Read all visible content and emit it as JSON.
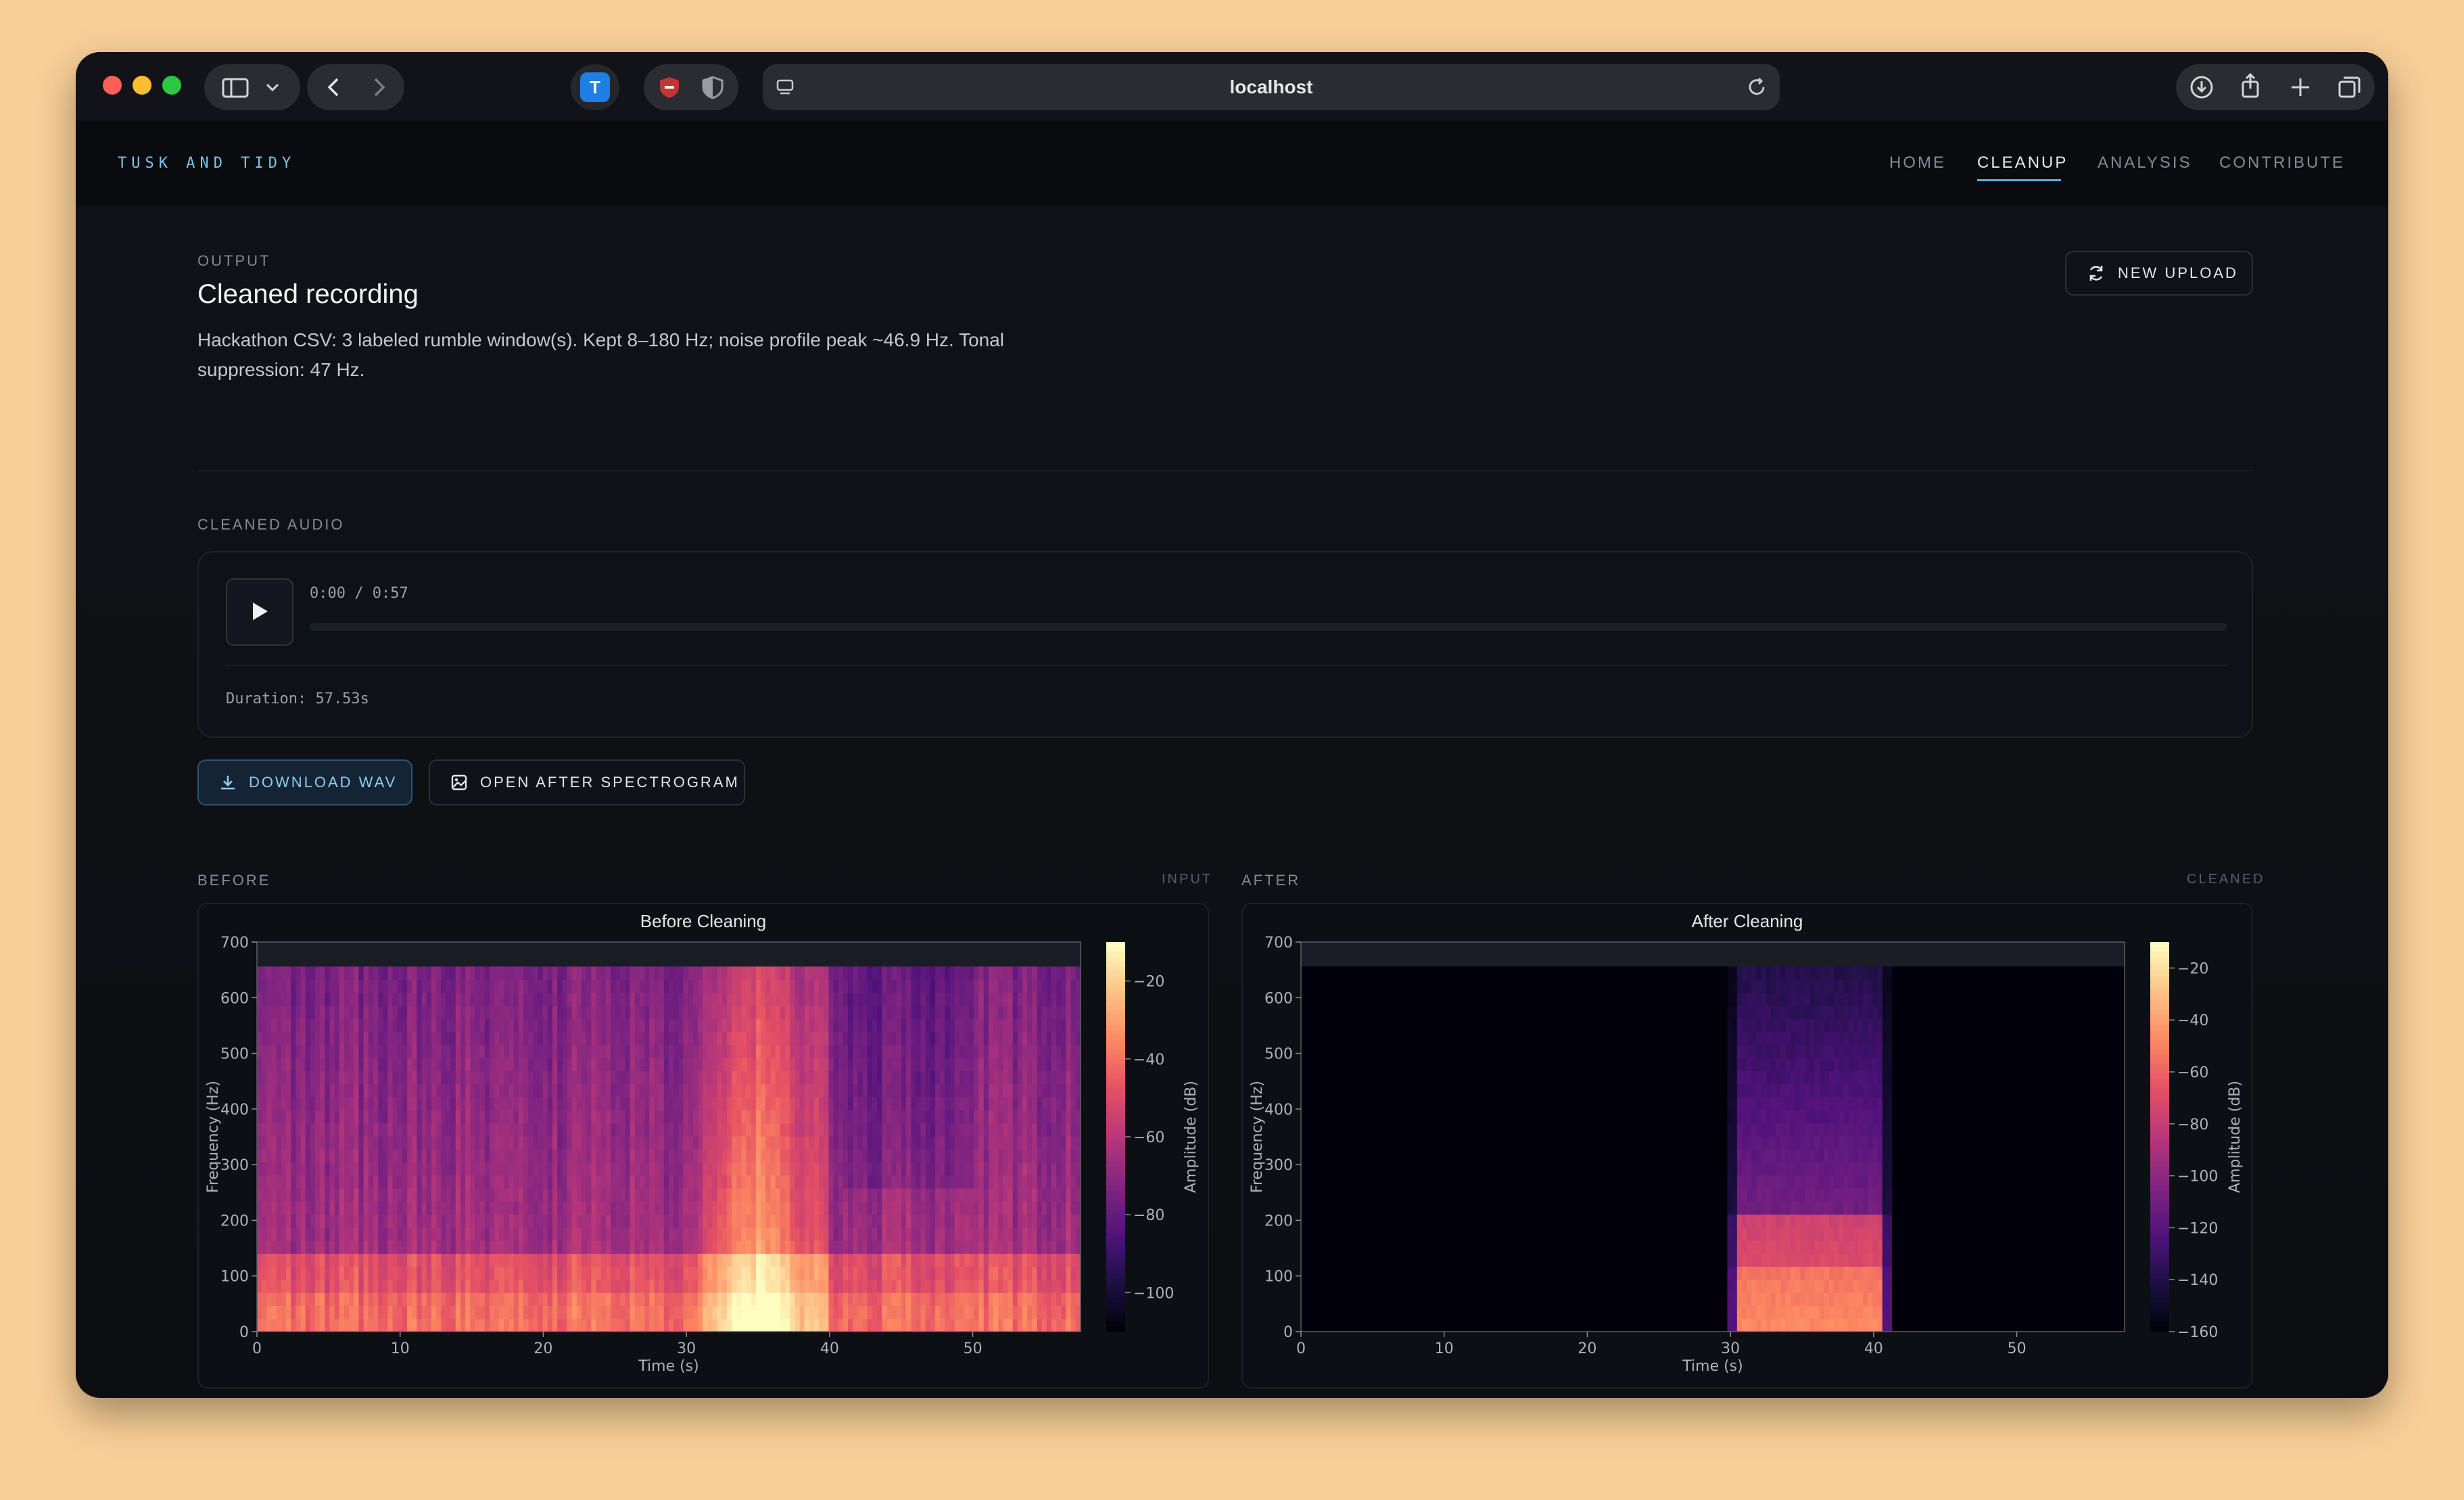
{
  "browser": {
    "url": "localhost"
  },
  "site": {
    "brand": "TUSK AND TIDY",
    "nav": [
      {
        "label": "HOME",
        "active": false
      },
      {
        "label": "CLEANUP",
        "active": true
      },
      {
        "label": "ANALYSIS",
        "active": false
      },
      {
        "label": "CONTRIBUTE",
        "active": false
      }
    ]
  },
  "output": {
    "eyebrow": "OUTPUT",
    "title": "Cleaned recording",
    "description": "Hackathon CSV: 3 labeled rumble window(s). Kept 8–180 Hz; noise profile peak ~46.9 Hz. Tonal suppression: 47 Hz.",
    "new_upload_label": "NEW UPLOAD"
  },
  "audio": {
    "section_label": "CLEANED AUDIO",
    "time_display": "0:00 / 0:57",
    "progress": 0,
    "duration_text": "Duration: 57.53s",
    "download_label": "DOWNLOAD WAV",
    "open_spectrogram_label": "OPEN AFTER SPECTROGRAM"
  },
  "comparison": {
    "before_label": "BEFORE",
    "before_tag": "INPUT",
    "after_label": "AFTER",
    "after_tag": "CLEANED"
  },
  "colors": {
    "accent": "#5fb2e2",
    "brand": "#7dc4ea",
    "background": "#0c0e12"
  },
  "chart_data": [
    {
      "type": "heatmap",
      "title": "Before Cleaning",
      "xlabel": "Time (s)",
      "ylabel": "Frequency (Hz)",
      "xlim": [
        0,
        57.53
      ],
      "ylim": [
        0,
        700
      ],
      "xticks": [
        0,
        10,
        20,
        30,
        40,
        50
      ],
      "yticks": [
        0,
        100,
        200,
        300,
        400,
        500,
        600,
        700
      ],
      "colorbar": {
        "label": "Amplitude (dB)",
        "ticks": [
          -20,
          -40,
          -60,
          -80,
          -100
        ],
        "range": [
          -110,
          -10
        ],
        "colormap": "magma"
      },
      "data_extent": {
        "freq_max": 656
      },
      "features": [
        {
          "t_start": 31,
          "t_end": 40,
          "f_low": 0,
          "f_high": 656,
          "level": "high energy"
        }
      ]
    },
    {
      "type": "heatmap",
      "title": "After Cleaning",
      "xlabel": "Time (s)",
      "ylabel": "Frequency (Hz)",
      "xlim": [
        0,
        57.53
      ],
      "ylim": [
        0,
        700
      ],
      "xticks": [
        0,
        10,
        20,
        30,
        40,
        50
      ],
      "yticks": [
        0,
        100,
        200,
        300,
        400,
        500,
        600,
        700
      ],
      "colorbar": {
        "label": "Amplitude (dB)",
        "ticks": [
          -20,
          -40,
          -60,
          -80,
          -100,
          -120,
          -140,
          -160
        ],
        "range": [
          -160,
          -10
        ],
        "colormap": "magma"
      },
      "data_extent": {
        "freq_max": 656
      },
      "features": [
        {
          "t_start": 29.8,
          "t_end": 41.2,
          "f_low": 0,
          "f_high": 656,
          "level": "retained rumble"
        }
      ]
    }
  ]
}
